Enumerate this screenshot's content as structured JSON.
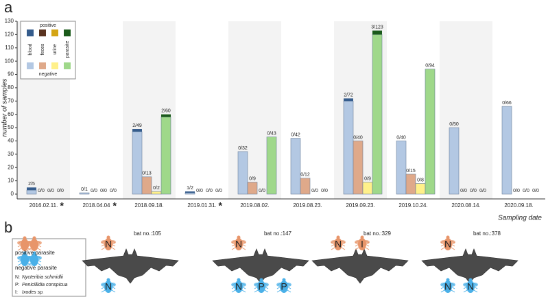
{
  "chart_data": {
    "type": "bar",
    "panel_label": "a",
    "ylabel": "number of samples",
    "xlabel": "Sampling date",
    "ylim": [
      0,
      130
    ],
    "yticks": [
      0,
      10,
      20,
      30,
      40,
      50,
      60,
      70,
      80,
      90,
      100,
      110,
      120,
      130
    ],
    "shaded": true,
    "categories": [
      "2016.02.11.",
      "2018.04.04",
      "2018.09.18.",
      "2019.01.31.",
      "2019.08.02.",
      "2019.08.23.",
      "2019.09.23.",
      "2019.10.24.",
      "2020.08.14.",
      "2020.09.18."
    ],
    "category_notes": [
      "*",
      "*",
      null,
      "*",
      null,
      null,
      null,
      null,
      null,
      null
    ],
    "legend": {
      "positive_title": "positive",
      "negative_title": "negative"
    },
    "series": [
      {
        "name": "blood",
        "color": "#b3c8e3",
        "positive_color": "#355c8c",
        "values": [
          3,
          1,
          47,
          1,
          32,
          42,
          70,
          40,
          50,
          66
        ],
        "positive_values": [
          2,
          0,
          2,
          1,
          0,
          0,
          2,
          0,
          0,
          0
        ],
        "bar_labels": [
          "2/5",
          "0/1",
          "2/49",
          "1/2",
          "0/32",
          "0/42",
          "2/72",
          "0/40",
          "0/50",
          "0/66"
        ]
      },
      {
        "name": "feces",
        "color": "#dfa98a",
        "positive_color": "#5a3420",
        "values": [
          0,
          0,
          13,
          0,
          9,
          12,
          40,
          15,
          0,
          0
        ],
        "positive_values": [
          0,
          0,
          0,
          0,
          0,
          0,
          0,
          0,
          0,
          0
        ],
        "bar_labels": [
          "0/0",
          "0/0",
          "0/13",
          "0/0",
          "0/9",
          "0/12",
          "0/40",
          "0/15",
          "0/0",
          "0/0"
        ]
      },
      {
        "name": "urine",
        "color": "#fff08a",
        "positive_color": "#d4a514",
        "values": [
          0,
          0,
          2,
          0,
          0,
          0,
          9,
          8,
          0,
          0
        ],
        "positive_values": [
          0,
          0,
          0,
          0,
          0,
          0,
          0,
          0,
          0,
          0
        ],
        "bar_labels": [
          "0/0",
          "0/0",
          "0/2",
          "0/0",
          "0/0",
          "0/0",
          "0/9",
          "0/8",
          "0/0",
          "0/0"
        ]
      },
      {
        "name": "parasite",
        "color": "#9fd88a",
        "positive_color": "#1a5a1a",
        "values": [
          0,
          0,
          58,
          0,
          43,
          0,
          120,
          94,
          0,
          0
        ],
        "positive_values": [
          0,
          0,
          2,
          0,
          0,
          0,
          3,
          0,
          0,
          0
        ],
        "bar_labels": [
          "0/0",
          "0/0",
          "2/60",
          "0/0",
          "0/43",
          "0/0",
          "3/123",
          "0/94",
          "0/0",
          "0/0"
        ]
      }
    ]
  },
  "panel_b": {
    "label": "b",
    "legend": {
      "positive": "positive parasite",
      "negative": "negative parasite",
      "species": [
        {
          "code": "N:",
          "name": "Nycteribia schmidlii"
        },
        {
          "code": "P:",
          "name": "Penicillidia conspicua"
        },
        {
          "code": "I:",
          "name": "Ixodes sp."
        }
      ]
    },
    "positive_color": "#e8956a",
    "negative_color": "#4ab0e8",
    "bats": [
      {
        "label": "bat no.:105",
        "positive": [
          "N"
        ],
        "negative": [
          "N"
        ]
      },
      {
        "label": "bat no.:147",
        "positive": [
          "N"
        ],
        "negative": [
          "N",
          "P",
          "P"
        ]
      },
      {
        "label": "bat no.:329",
        "positive": [
          "N",
          "I"
        ],
        "negative": []
      },
      {
        "label": "bat no.:378",
        "positive": [
          "N"
        ],
        "negative": [
          "N",
          "N"
        ]
      }
    ]
  }
}
